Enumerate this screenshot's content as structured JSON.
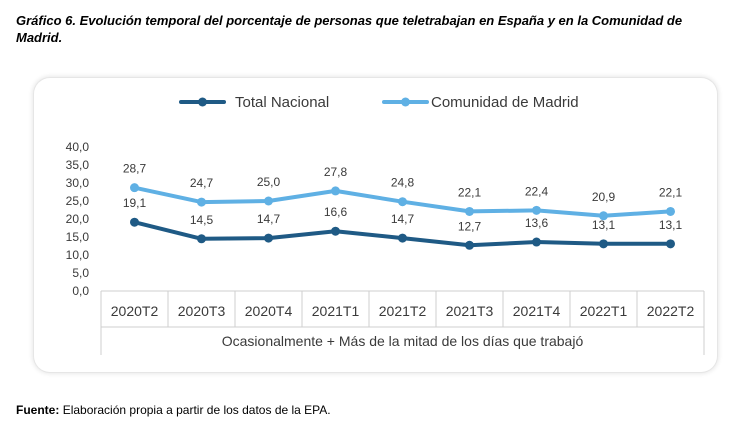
{
  "title": "Gráfico 6. Evolución temporal del porcentaje de personas que teletrabajan en España y en la Comunidad de Madrid.",
  "footer": {
    "label": "Fuente:",
    "text": "Elaboración propia a partir de los datos de la EPA."
  },
  "colors": {
    "total": "#1f5a85",
    "madrid": "#5fb0e4",
    "grid": "#cfcfcf",
    "text": "#3a3a3a"
  },
  "chart_data": {
    "type": "line",
    "title": "",
    "xlabel": "Ocasionalmente + Más de la mitad de los días que trabajó",
    "ylabel": "",
    "ylim": [
      0,
      40
    ],
    "yticks": [
      "0,0",
      "5,0",
      "10,0",
      "15,0",
      "20,0",
      "25,0",
      "30,0",
      "35,0",
      "40,0"
    ],
    "categories": [
      "2020T2",
      "2020T3",
      "2020T4",
      "2021T1",
      "2021T2",
      "2021T3",
      "2021T4",
      "2022T1",
      "2022T2"
    ],
    "legend_position": "top",
    "series": [
      {
        "name": "Total Nacional",
        "color_key": "total",
        "values": [
          19.1,
          14.5,
          14.7,
          16.6,
          14.7,
          12.7,
          13.6,
          13.1,
          13.1
        ],
        "labels": [
          "19,1",
          "14,5",
          "14,7",
          "16,6",
          "14,7",
          "12,7",
          "13,6",
          "13,1",
          "13,1"
        ]
      },
      {
        "name": "Comunidad de Madrid",
        "color_key": "madrid",
        "values": [
          28.7,
          24.7,
          25.0,
          27.8,
          24.8,
          22.1,
          22.4,
          20.9,
          22.1
        ],
        "labels": [
          "28,7",
          "24,7",
          "25,0",
          "27,8",
          "24,8",
          "22,1",
          "22,4",
          "20,9",
          "22,1"
        ]
      }
    ]
  }
}
